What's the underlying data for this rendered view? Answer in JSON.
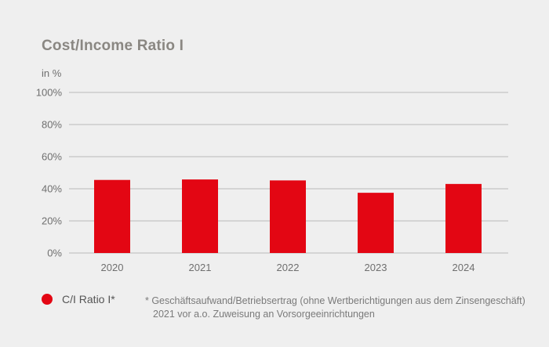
{
  "chart_data": {
    "type": "bar",
    "title": "Cost/Income Ratio I",
    "unit_label": "in %",
    "categories": [
      "2020",
      "2021",
      "2022",
      "2023",
      "2024"
    ],
    "series": [
      {
        "name": "C/I Ratio I*",
        "values": [
          45.5,
          45.8,
          45.2,
          37.5,
          43.0
        ]
      }
    ],
    "ylim": [
      0,
      100
    ],
    "yticks": [
      "0%",
      "20%",
      "40%",
      "60%",
      "80%",
      "100%"
    ],
    "ytick_values": [
      0,
      20,
      40,
      60,
      80,
      100
    ],
    "grid": true,
    "legend_position": "bottom-left",
    "bar_color": "#e30613",
    "footnote": [
      "* Geschäftsaufwand/Betriebsertrag (ohne Wertberichtigungen aus dem Zinsengeschäft)",
      "2021 vor a.o. Zuweisung an Vorsorgeeinrichtungen"
    ]
  }
}
